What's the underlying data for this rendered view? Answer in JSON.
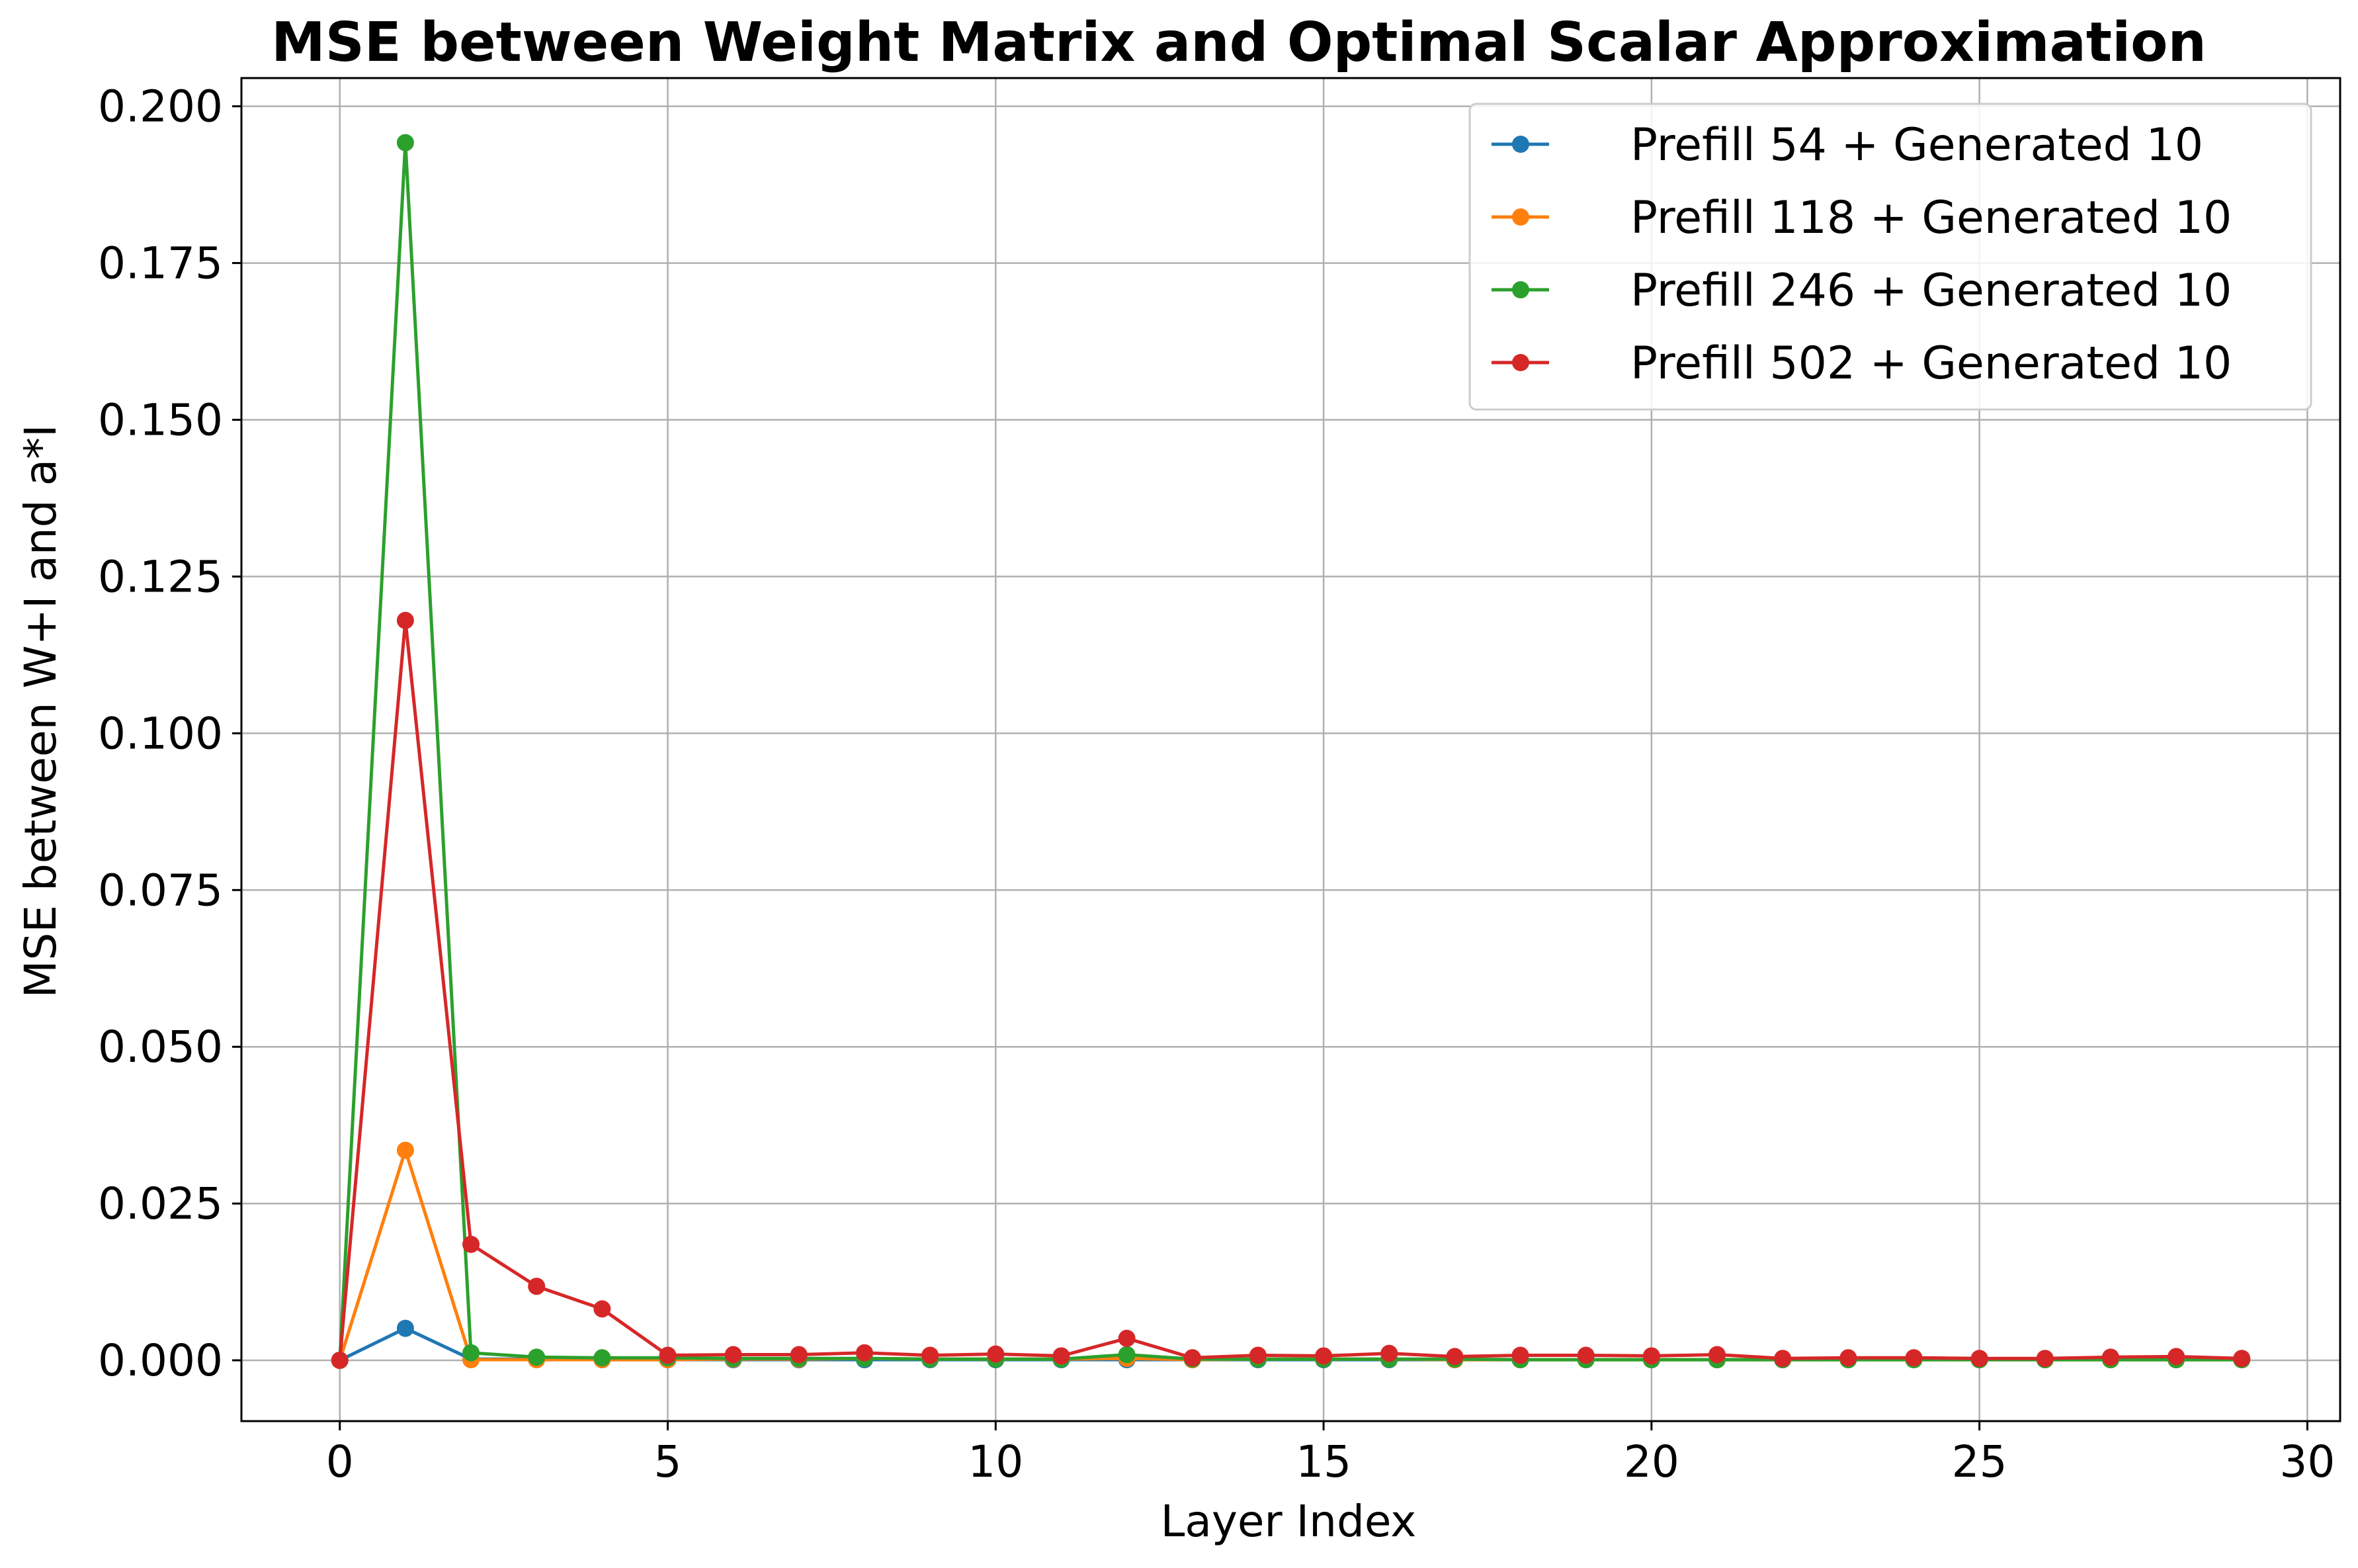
{
  "chart_data": {
    "type": "line",
    "title": "MSE between Weight Matrix and Optimal Scalar Approximation",
    "xlabel": "Layer Index",
    "ylabel": "MSE between W+I and a*I",
    "xlim": [
      -1.5,
      30.5
    ],
    "ylim": [
      -0.0097,
      0.2045
    ],
    "xticks": [
      0,
      5,
      10,
      15,
      20,
      25,
      30
    ],
    "xtick_labels": [
      "0",
      "5",
      "10",
      "15",
      "20",
      "25",
      "30"
    ],
    "yticks": [
      0.0,
      0.025,
      0.05,
      0.075,
      0.1,
      0.125,
      0.15,
      0.175,
      0.2
    ],
    "ytick_labels": [
      "0.000",
      "0.025",
      "0.050",
      "0.075",
      "0.100",
      "0.125",
      "0.150",
      "0.175",
      "0.200"
    ],
    "grid": true,
    "legend_position": "top-right",
    "x": [
      0,
      1,
      2,
      3,
      4,
      5,
      6,
      7,
      8,
      9,
      10,
      11,
      12,
      13,
      14,
      15,
      16,
      17,
      18,
      19,
      20,
      21,
      22,
      23,
      24,
      25,
      26,
      27,
      28,
      29
    ],
    "series": [
      {
        "name": "Prefill 54 + Generated 10",
        "color": "#1f77b4",
        "values": [
          0,
          0.0051,
          0.0002,
          0.0002,
          0.0001,
          0.0001,
          0.0001,
          0.0001,
          0.0001,
          0.0001,
          0.0001,
          0.0001,
          0.0001,
          0.0001,
          0.0001,
          0.0001,
          0.0001,
          0.0001,
          0.0001,
          0.0001,
          0.0001,
          0.0001,
          0.0001,
          0.0001,
          0.0001,
          0.0001,
          0.0001,
          0.0001,
          0.0001,
          0.0001
        ]
      },
      {
        "name": "Prefill 118 + Generated 10",
        "color": "#ff7f0e",
        "values": [
          0,
          0.0335,
          0.0001,
          0.0001,
          0.0001,
          0.0001,
          0.0002,
          0.0002,
          0.0003,
          0.0002,
          0.0002,
          0.0002,
          0.0003,
          0.0001,
          0.0002,
          0.0002,
          0.0002,
          0.0001,
          0.0001,
          0.0001,
          0.0001,
          0.0001,
          0.0001,
          0.0001,
          0.0001,
          0.0001,
          0.0001,
          0.0001,
          0.0001,
          0.0001
        ]
      },
      {
        "name": "Prefill 246 + Generated 10",
        "color": "#2ca02c",
        "values": [
          0,
          0.1942,
          0.0012,
          0.0005,
          0.0004,
          0.0004,
          0.0003,
          0.0003,
          0.0003,
          0.0002,
          0.0002,
          0.0002,
          0.0009,
          0.0002,
          0.0002,
          0.0002,
          0.0002,
          0.0002,
          0.0001,
          0.0001,
          0.0001,
          0.0001,
          0.0001,
          0.0001,
          0.0001,
          0.0001,
          0.0001,
          0.0001,
          0.0001,
          0.0001
        ]
      },
      {
        "name": "Prefill 502 + Generated 10",
        "color": "#d62728",
        "values": [
          0,
          0.118,
          0.0185,
          0.0118,
          0.0082,
          0.0008,
          0.0009,
          0.0009,
          0.0012,
          0.0008,
          0.001,
          0.0007,
          0.0035,
          0.0004,
          0.0008,
          0.0007,
          0.0011,
          0.0006,
          0.0008,
          0.0008,
          0.0007,
          0.0009,
          0.0003,
          0.0004,
          0.0004,
          0.0003,
          0.0003,
          0.0005,
          0.0006,
          0.0003
        ]
      }
    ]
  }
}
